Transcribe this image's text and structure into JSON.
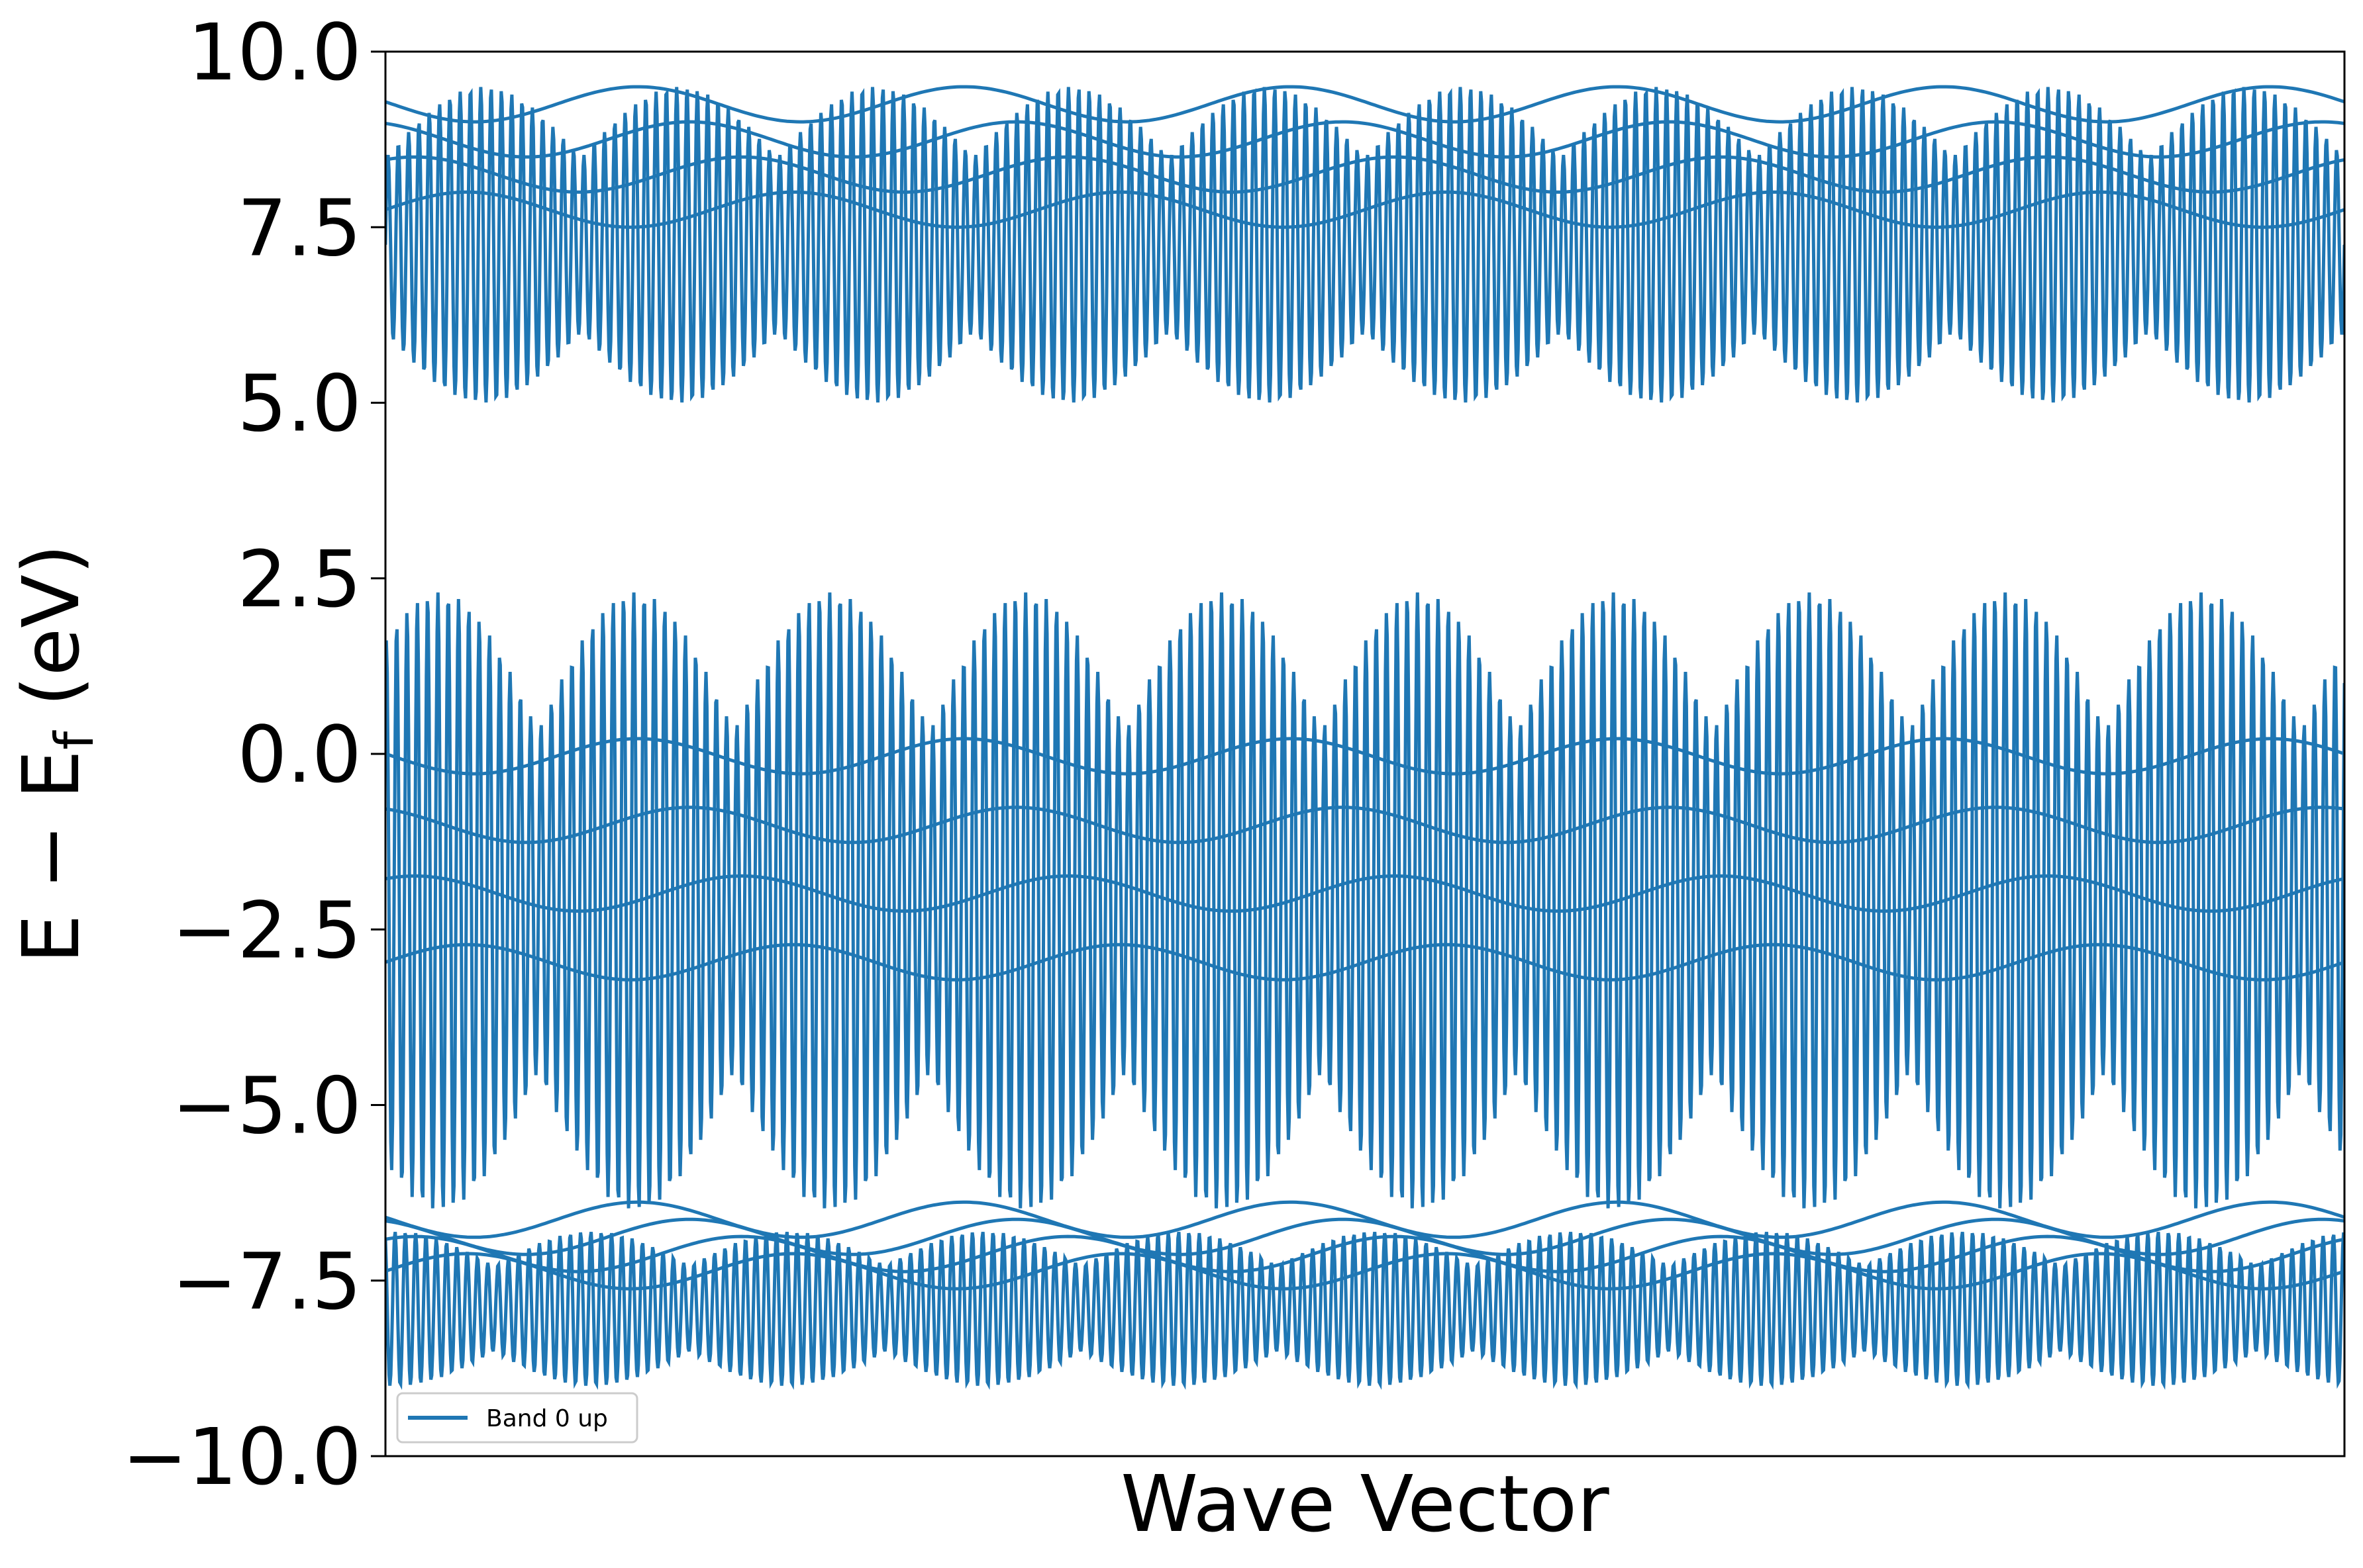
{
  "chart_data": {
    "type": "line",
    "xlabel": "Wave Vector",
    "ylabel": {
      "main": "E − E",
      "subscript": "f",
      "unit": " (eV)"
    },
    "ylim": [
      -10.0,
      10.0
    ],
    "yticks": [
      -10.0,
      -7.5,
      -5.0,
      -2.5,
      0.0,
      2.5,
      5.0,
      7.5,
      10.0
    ],
    "ytick_labels": [
      "−10.0",
      "−7.5",
      "−5.0",
      "−2.5",
      "0.0",
      "2.5",
      "5.0",
      "7.5",
      "10.0"
    ],
    "xticks": [],
    "grid": false,
    "legend": {
      "placement": "lower-left",
      "entries": [
        "Band 0 up"
      ]
    },
    "line_color": "#1f77b4",
    "series": [
      {
        "name": "Band 0 up",
        "note_bands": [
          {
            "lower": 5.0,
            "upper": 9.5,
            "center": 8.5
          },
          {
            "lower": -6.5,
            "upper": 2.3,
            "center": -1.5
          },
          {
            "lower": -9.0,
            "upper": -6.8,
            "center": -7.0
          }
        ]
      }
    ]
  }
}
